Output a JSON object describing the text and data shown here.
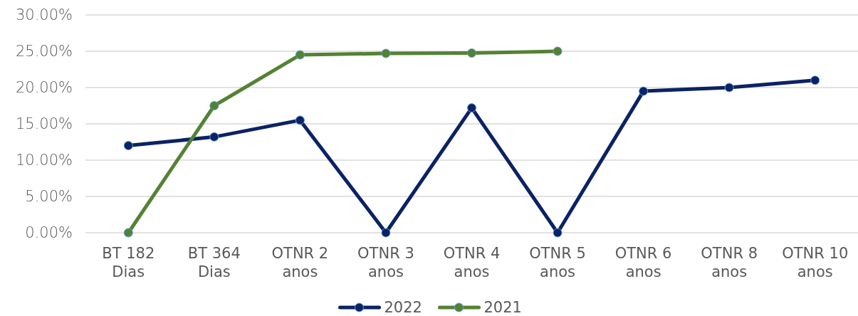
{
  "chart_data": {
    "type": "line",
    "categories": [
      "BT 182 Dias",
      "BT 364 Dias",
      "OTNR 2 anos",
      "OTNR 3 anos",
      "OTNR 4 anos",
      "OTNR 5 anos",
      "OTNR 6 anos",
      "OTNR 8 anos",
      "OTNR 10 anos"
    ],
    "series": [
      {
        "name": "2022",
        "color": "#0b2264",
        "values": [
          12.0,
          13.2,
          15.5,
          0,
          17.2,
          0,
          19.5,
          20.0,
          21.0
        ]
      },
      {
        "name": "2021",
        "color": "#548235",
        "values": [
          0,
          17.5,
          24.5,
          24.7,
          24.75,
          25.0,
          null,
          null,
          null
        ]
      }
    ],
    "ylim": [
      0,
      30
    ],
    "yticks": [
      {
        "value": 0,
        "label": "0.00%"
      },
      {
        "value": 5,
        "label": "5.00%"
      },
      {
        "value": 10,
        "label": "10.00%"
      },
      {
        "value": 15,
        "label": "15.00%"
      },
      {
        "value": 20,
        "label": "20.00%"
      },
      {
        "value": 25,
        "label": "25.00%"
      },
      {
        "value": 30,
        "label": "30.00%"
      }
    ],
    "grid": "y",
    "legend": "bottom",
    "marker": "circle",
    "line_style": "solid"
  }
}
